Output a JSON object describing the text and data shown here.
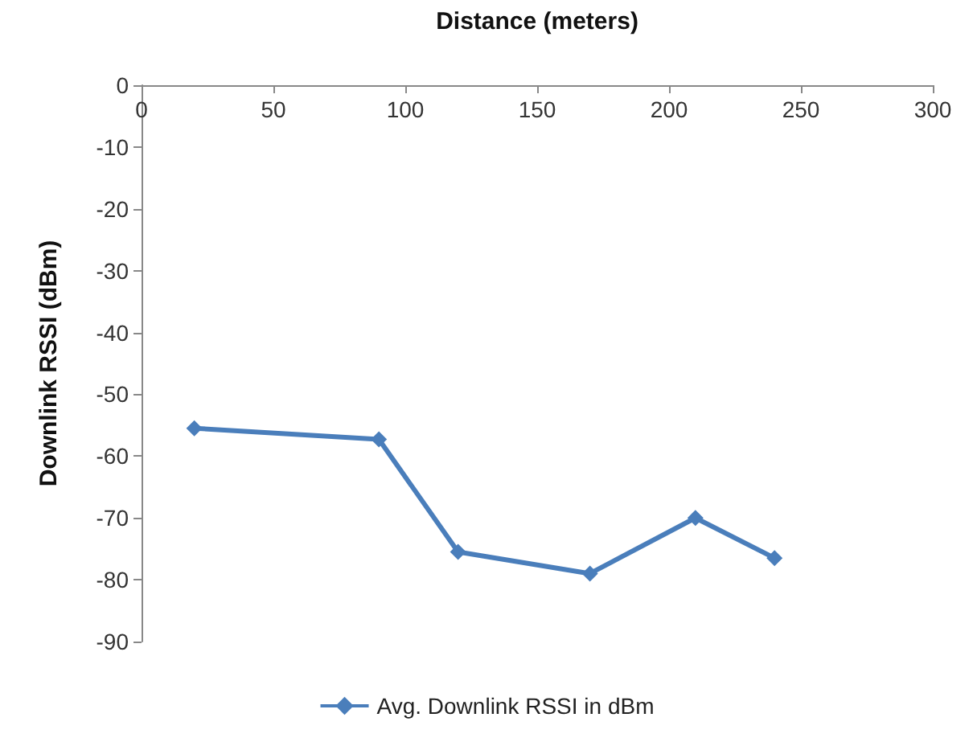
{
  "chart_data": {
    "type": "line",
    "xlabel": "Distance (meters)",
    "ylabel": "Downlink RSSI (dBm)",
    "x": [
      20,
      90,
      120,
      170,
      210,
      240
    ],
    "series": [
      {
        "name": "Avg. Downlink RSSI in dBm",
        "color": "#4a7ebb",
        "values": [
          -55.5,
          -57.3,
          -75.5,
          -79,
          -70,
          -76.5
        ]
      }
    ],
    "xlim": [
      0,
      300
    ],
    "xticks": [
      0,
      50,
      100,
      150,
      200,
      250,
      300
    ],
    "ylim": [
      -90,
      0
    ],
    "yticks": [
      0,
      -10,
      -20,
      -30,
      -40,
      -50,
      -60,
      -70,
      -80,
      -90
    ],
    "grid": false,
    "legend": "bottom",
    "marker": "diamond",
    "line_style": "solid"
  }
}
